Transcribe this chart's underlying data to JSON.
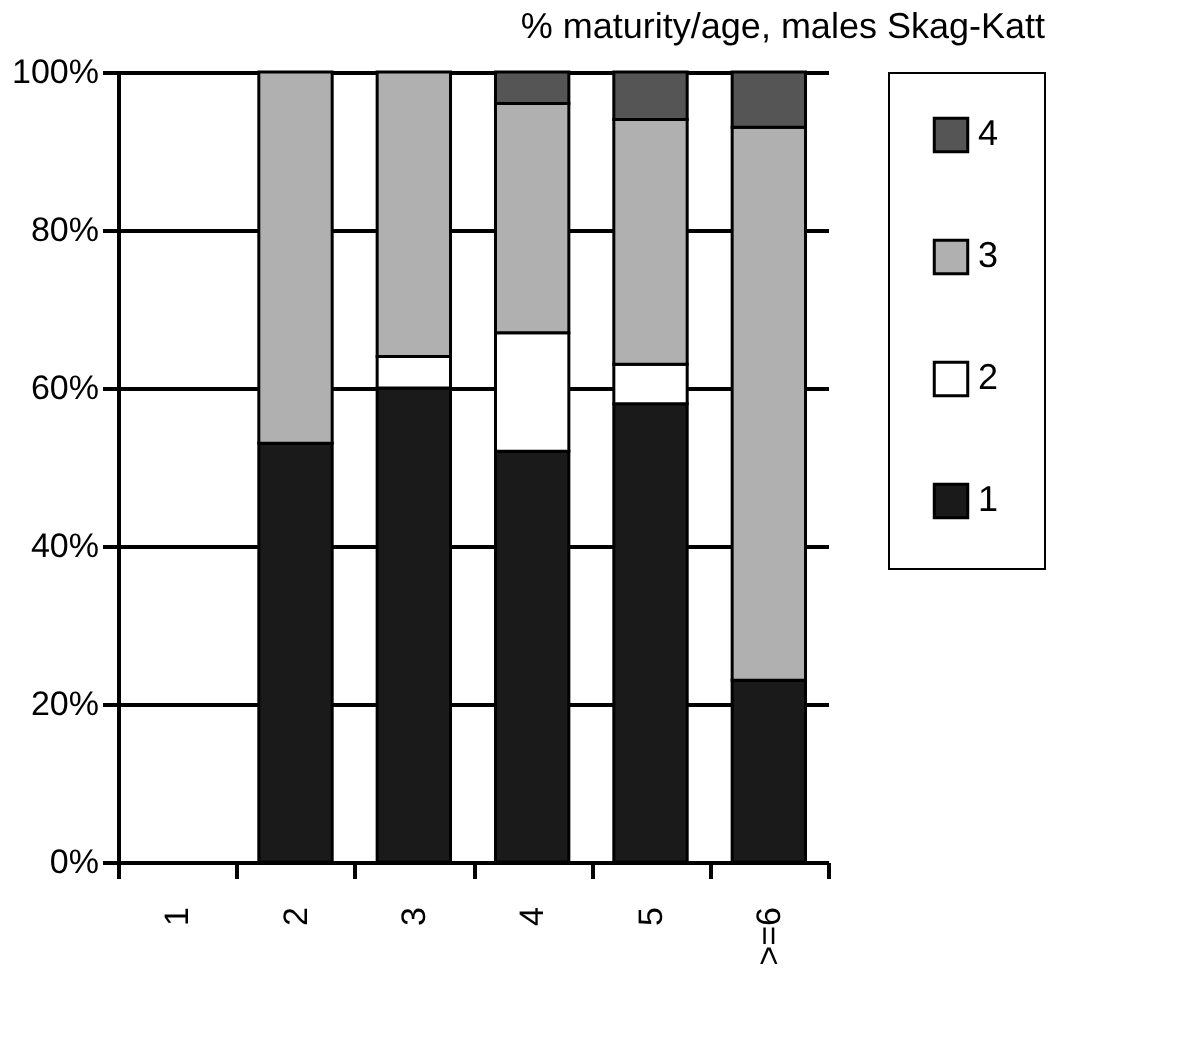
{
  "chart_data": {
    "type": "bar",
    "title": "% maturity/age, males Skag-Katt",
    "categories": [
      "1",
      "2",
      "3",
      "4",
      "5",
      ">=6"
    ],
    "stacked": true,
    "series": [
      {
        "name": "1",
        "color": "#1a1a1a",
        "values": [
          null,
          53,
          60,
          52,
          58,
          23
        ]
      },
      {
        "name": "2",
        "color": "#ffffff",
        "values": [
          null,
          null,
          4,
          15,
          5,
          null
        ]
      },
      {
        "name": "3",
        "color": "#b0b0b0",
        "values": [
          null,
          47,
          36,
          29,
          31,
          70
        ]
      },
      {
        "name": "4",
        "color": "#555555",
        "values": [
          null,
          null,
          null,
          4,
          6,
          7
        ]
      }
    ],
    "ylim": [
      0,
      100
    ],
    "yticks": [
      {
        "value": 0,
        "label": "0%"
      },
      {
        "value": 20,
        "label": "20%"
      },
      {
        "value": 40,
        "label": "40%"
      },
      {
        "value": 60,
        "label": "60%"
      },
      {
        "value": 80,
        "label": "80%"
      },
      {
        "value": 100,
        "label": "100%"
      }
    ],
    "grid": "y",
    "legend": "right"
  }
}
